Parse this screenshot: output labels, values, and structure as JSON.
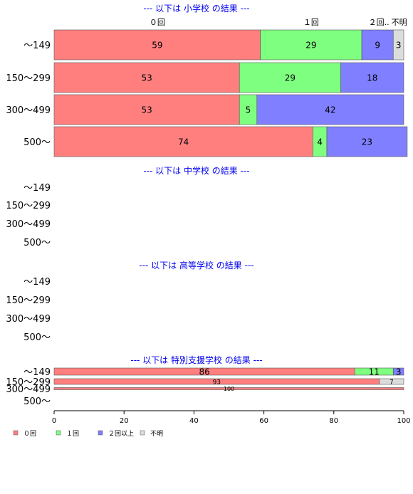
{
  "colors": {
    "zero": "#ff7f7f",
    "one": "#7fff7f",
    "two_plus": "#7f7fff",
    "unknown": "#dcdcdc",
    "title": "#0000ee",
    "border": "#555555"
  },
  "chart_data": {
    "type": "bar",
    "orientation": "horizontal",
    "stacked": true,
    "xlim": [
      0,
      100
    ],
    "x_ticks": [
      "0",
      "20",
      "40",
      "60",
      "80",
      "100"
    ],
    "series_names": [
      "０回",
      "１回",
      "２回以上",
      "不明"
    ],
    "top_labels": [
      "０回",
      "１回",
      "２回..",
      "不明"
    ],
    "legend": {
      "placement": "bottom-left",
      "items": [
        "０回",
        "１回",
        "２回以上",
        "不明"
      ]
    },
    "categories": [
      "～149",
      "150～299",
      "300～499",
      "500～"
    ],
    "sections": [
      {
        "title": "--- 以下は 小学校 の結果 ---",
        "rows": [
          {
            "label": "～149",
            "values": [
              59,
              29,
              9,
              3
            ]
          },
          {
            "label": "150～299",
            "values": [
              53,
              29,
              18,
              0
            ]
          },
          {
            "label": "300～499",
            "values": [
              53,
              5,
              42,
              0
            ]
          },
          {
            "label": "500～",
            "values": [
              74,
              4,
              23,
              0
            ]
          }
        ]
      },
      {
        "title": "--- 以下は 中学校 の結果 ---",
        "rows": [
          {
            "label": "～149",
            "values": []
          },
          {
            "label": "150～299",
            "values": []
          },
          {
            "label": "300～499",
            "values": []
          },
          {
            "label": "500～",
            "values": []
          }
        ]
      },
      {
        "title": "--- 以下は 高等学校 の結果 ---",
        "rows": [
          {
            "label": "～149",
            "values": []
          },
          {
            "label": "150～299",
            "values": []
          },
          {
            "label": "300～499",
            "values": []
          },
          {
            "label": "500～",
            "values": []
          }
        ]
      },
      {
        "title": "--- 以下は 特別支援学校 の結果 ---",
        "rows": [
          {
            "label": "～149",
            "values": [
              86,
              11,
              3,
              0
            ]
          },
          {
            "label": "150～299",
            "values": [
              93,
              0,
              0,
              7
            ]
          },
          {
            "label": "300～499",
            "values": [
              100,
              0,
              0,
              0
            ]
          },
          {
            "label": "500～",
            "values": []
          }
        ]
      }
    ]
  }
}
